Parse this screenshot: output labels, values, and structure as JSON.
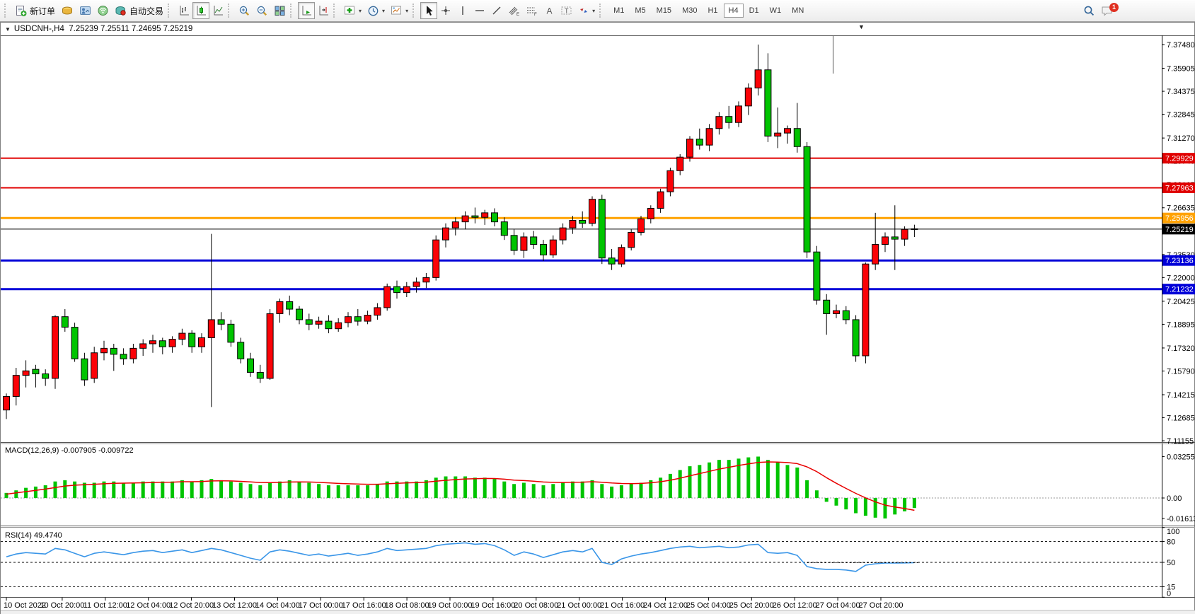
{
  "toolbar": {
    "new_order_label": "新订单",
    "auto_trading_label": "自动交易",
    "timeframes": [
      "M1",
      "M5",
      "M15",
      "M30",
      "H1",
      "H4",
      "D1",
      "W1",
      "MN"
    ],
    "active_timeframe": "H4",
    "notification_count": "1"
  },
  "chart": {
    "symbol": "USDCNH-,H4",
    "ohlc": "7.25239 7.25511 7.24695 7.25219"
  },
  "chart_data": {
    "type": "candlestick",
    "symbol": "USDCNH-",
    "timeframe": "H4",
    "bull_color": "#fb0207",
    "bear_color": "#00c400",
    "price_ticks": [
      "7.37480",
      "7.35905",
      "7.34375",
      "7.32845",
      "7.31270",
      "7.29740",
      "7.28165",
      "7.26635",
      "7.25105",
      "7.23530",
      "7.22000",
      "7.20425",
      "7.18895",
      "7.17320",
      "7.15790",
      "7.14215",
      "7.12685",
      "7.11155"
    ],
    "hlines": [
      {
        "label": "7.29929",
        "color": "#e00000",
        "width": 2
      },
      {
        "label": "7.27963",
        "color": "#e00000",
        "width": 2
      },
      {
        "label": "7.25956",
        "color": "#ffa200",
        "width": 3
      },
      {
        "label": "7.25219",
        "color": "#000000",
        "width": 1
      },
      {
        "label": "7.23136",
        "color": "#0000d8",
        "width": 3
      },
      {
        "label": "7.21232",
        "color": "#0000d8",
        "width": 3
      }
    ],
    "time_labels": [
      "10 Oct 2022",
      "10 Oct 20:00",
      "11 Oct 12:00",
      "12 Oct 04:00",
      "12 Oct 20:00",
      "13 Oct 12:00",
      "14 Oct 04:00",
      "17 Oct 00:00",
      "17 Oct 16:00",
      "18 Oct 08:00",
      "19 Oct 00:00",
      "19 Oct 16:00",
      "20 Oct 08:00",
      "21 Oct 00:00",
      "21 Oct 16:00",
      "24 Oct 12:00",
      "25 Oct 04:00",
      "25 Oct 20:00",
      "26 Oct 12:00",
      "27 Oct 04:00",
      "27 Oct 20:00"
    ],
    "candles": [
      [
        7.132,
        7.143,
        7.126,
        7.141
      ],
      [
        7.141,
        7.16,
        7.135,
        7.155
      ],
      [
        7.155,
        7.165,
        7.147,
        7.158
      ],
      [
        7.159,
        7.162,
        7.147,
        7.156
      ],
      [
        7.156,
        7.159,
        7.148,
        7.153
      ],
      [
        7.153,
        7.195,
        7.146,
        7.194
      ],
      [
        7.194,
        7.199,
        7.184,
        7.187
      ],
      [
        7.187,
        7.19,
        7.164,
        7.166
      ],
      [
        7.166,
        7.17,
        7.148,
        7.152
      ],
      [
        7.153,
        7.174,
        7.15,
        7.17
      ],
      [
        7.17,
        7.178,
        7.165,
        7.173
      ],
      [
        7.173,
        7.176,
        7.158,
        7.169
      ],
      [
        7.169,
        7.173,
        7.162,
        7.166
      ],
      [
        7.166,
        7.176,
        7.163,
        7.173
      ],
      [
        7.173,
        7.179,
        7.168,
        7.176
      ],
      [
        7.176,
        7.182,
        7.17,
        7.178
      ],
      [
        7.178,
        7.18,
        7.169,
        7.174
      ],
      [
        7.174,
        7.181,
        7.17,
        7.179
      ],
      [
        7.179,
        7.186,
        7.175,
        7.183
      ],
      [
        7.183,
        7.185,
        7.17,
        7.174
      ],
      [
        7.174,
        7.183,
        7.17,
        7.18
      ],
      [
        7.18,
        7.249,
        7.134,
        7.192
      ],
      [
        7.192,
        7.197,
        7.185,
        7.189
      ],
      [
        7.189,
        7.192,
        7.174,
        7.177
      ],
      [
        7.177,
        7.18,
        7.163,
        7.166
      ],
      [
        7.166,
        7.17,
        7.154,
        7.157
      ],
      [
        7.157,
        7.162,
        7.15,
        7.153
      ],
      [
        7.153,
        7.199,
        7.152,
        7.196
      ],
      [
        7.196,
        7.206,
        7.19,
        7.204
      ],
      [
        7.204,
        7.208,
        7.195,
        7.199
      ],
      [
        7.199,
        7.201,
        7.189,
        7.192
      ],
      [
        7.192,
        7.196,
        7.185,
        7.189
      ],
      [
        7.189,
        7.194,
        7.186,
        7.191
      ],
      [
        7.191,
        7.195,
        7.183,
        7.186
      ],
      [
        7.186,
        7.193,
        7.184,
        7.19
      ],
      [
        7.19,
        7.197,
        7.187,
        7.194
      ],
      [
        7.194,
        7.199,
        7.188,
        7.191
      ],
      [
        7.191,
        7.198,
        7.189,
        7.195
      ],
      [
        7.195,
        7.203,
        7.192,
        7.2
      ],
      [
        7.2,
        7.216,
        7.198,
        7.214
      ],
      [
        7.214,
        7.218,
        7.206,
        7.21
      ],
      [
        7.21,
        7.217,
        7.207,
        7.214
      ],
      [
        7.214,
        7.22,
        7.21,
        7.217
      ],
      [
        7.217,
        7.223,
        7.213,
        7.22
      ],
      [
        7.22,
        7.248,
        7.218,
        7.245
      ],
      [
        7.245,
        7.256,
        7.24,
        7.253
      ],
      [
        7.253,
        7.26,
        7.248,
        7.257
      ],
      [
        7.257,
        7.264,
        7.252,
        7.261
      ],
      [
        7.261,
        7.2665,
        7.256,
        7.26
      ],
      [
        7.26,
        7.265,
        7.255,
        7.263
      ],
      [
        7.263,
        7.266,
        7.254,
        7.257
      ],
      [
        7.257,
        7.26,
        7.245,
        7.248
      ],
      [
        7.248,
        7.252,
        7.235,
        7.238
      ],
      [
        7.238,
        7.25,
        7.233,
        7.247
      ],
      [
        7.247,
        7.251,
        7.239,
        7.242
      ],
      [
        7.242,
        7.245,
        7.231,
        7.235
      ],
      [
        7.235,
        7.248,
        7.233,
        7.245
      ],
      [
        7.245,
        7.256,
        7.242,
        7.253
      ],
      [
        7.253,
        7.261,
        7.249,
        7.258
      ],
      [
        7.258,
        7.264,
        7.253,
        7.256
      ],
      [
        7.256,
        7.274,
        7.254,
        7.272
      ],
      [
        7.272,
        7.275,
        7.229,
        7.233
      ],
      [
        7.233,
        7.239,
        7.225,
        7.229
      ],
      [
        7.229,
        7.242,
        7.227,
        7.24
      ],
      [
        7.24,
        7.252,
        7.238,
        7.25
      ],
      [
        7.25,
        7.261,
        7.248,
        7.259
      ],
      [
        7.259,
        7.268,
        7.256,
        7.266
      ],
      [
        7.266,
        7.279,
        7.263,
        7.277
      ],
      [
        7.277,
        7.293,
        7.274,
        7.291
      ],
      [
        7.291,
        7.302,
        7.288,
        7.3
      ],
      [
        7.3,
        7.314,
        7.297,
        7.312
      ],
      [
        7.312,
        7.319,
        7.305,
        7.308
      ],
      [
        7.308,
        7.322,
        7.304,
        7.319
      ],
      [
        7.319,
        7.33,
        7.315,
        7.327
      ],
      [
        7.327,
        7.334,
        7.319,
        7.323
      ],
      [
        7.323,
        7.337,
        7.32,
        7.334
      ],
      [
        7.334,
        7.349,
        7.328,
        7.346
      ],
      [
        7.346,
        7.3748,
        7.341,
        7.358
      ],
      [
        7.358,
        7.369,
        7.31,
        7.314
      ],
      [
        7.314,
        7.333,
        7.306,
        7.316
      ],
      [
        7.316,
        7.321,
        7.309,
        7.319
      ],
      [
        7.319,
        7.336,
        7.303,
        7.307
      ],
      [
        7.307,
        7.31,
        7.233,
        7.237
      ],
      [
        7.237,
        7.241,
        7.202,
        7.205
      ],
      [
        7.205,
        7.209,
        7.182,
        7.196
      ],
      [
        7.196,
        7.202,
        7.193,
        7.198
      ],
      [
        7.198,
        7.201,
        7.189,
        7.192
      ],
      [
        7.192,
        7.195,
        7.164,
        7.168
      ],
      [
        7.168,
        7.23,
        7.163,
        7.229
      ],
      [
        7.229,
        7.263,
        7.225,
        7.242
      ],
      [
        7.242,
        7.25,
        7.237,
        7.247
      ],
      [
        7.247,
        7.268,
        7.225,
        7.2455
      ],
      [
        7.2455,
        7.254,
        7.241,
        7.252
      ],
      [
        7.25239,
        7.25511,
        7.24695,
        7.25219
      ]
    ],
    "macd": {
      "label": "MACD(12,26,9) -0.007905 -0.009722",
      "bar_color": "#00c400",
      "signal_color": "#e80000",
      "ticks": [
        "0.032551",
        "0.00",
        "-0.016137"
      ],
      "tick_values": [
        0.032551,
        0,
        -0.016137
      ],
      "values": [
        0.004,
        0.006,
        0.008,
        0.009,
        0.01,
        0.013,
        0.014,
        0.013,
        0.012,
        0.012,
        0.013,
        0.013,
        0.012,
        0.012,
        0.013,
        0.013,
        0.013,
        0.013,
        0.014,
        0.013,
        0.014,
        0.015,
        0.014,
        0.013,
        0.012,
        0.011,
        0.01,
        0.012,
        0.013,
        0.014,
        0.013,
        0.012,
        0.011,
        0.01,
        0.01,
        0.01,
        0.01,
        0.01,
        0.011,
        0.013,
        0.013,
        0.013,
        0.013,
        0.014,
        0.016,
        0.017,
        0.017,
        0.017,
        0.016,
        0.016,
        0.015,
        0.013,
        0.011,
        0.012,
        0.011,
        0.01,
        0.011,
        0.012,
        0.013,
        0.013,
        0.014,
        0.011,
        0.009,
        0.01,
        0.011,
        0.012,
        0.014,
        0.016,
        0.019,
        0.022,
        0.025,
        0.026,
        0.028,
        0.03,
        0.03,
        0.031,
        0.032,
        0.0326,
        0.03,
        0.028,
        0.026,
        0.024,
        0.014,
        0.006,
        -0.003,
        -0.006,
        -0.009,
        -0.012,
        -0.014,
        -0.0155,
        -0.0161,
        -0.013,
        -0.0105,
        -0.0079
      ],
      "signal": [
        0.003,
        0.004,
        0.005,
        0.006,
        0.007,
        0.0082,
        0.0094,
        0.0101,
        0.0105,
        0.0108,
        0.0112,
        0.0116,
        0.0117,
        0.0118,
        0.012,
        0.0122,
        0.0124,
        0.0125,
        0.0128,
        0.0128,
        0.013,
        0.0134,
        0.0135,
        0.0134,
        0.0131,
        0.0127,
        0.0122,
        0.0121,
        0.0123,
        0.0126,
        0.0127,
        0.0126,
        0.0123,
        0.0119,
        0.0115,
        0.0112,
        0.011,
        0.0108,
        0.0108,
        0.0112,
        0.0116,
        0.0119,
        0.0121,
        0.0125,
        0.0132,
        0.0139,
        0.0145,
        0.015,
        0.0152,
        0.0154,
        0.0153,
        0.0148,
        0.0141,
        0.0137,
        0.0132,
        0.0126,
        0.0123,
        0.0122,
        0.0124,
        0.0125,
        0.0128,
        0.0124,
        0.0118,
        0.0114,
        0.0113,
        0.0115,
        0.012,
        0.0128,
        0.014,
        0.0156,
        0.0175,
        0.0192,
        0.021,
        0.0228,
        0.0242,
        0.0256,
        0.0269,
        0.028,
        0.0284,
        0.0283,
        0.0279,
        0.0271,
        0.0245,
        0.0208,
        0.016,
        0.0116,
        0.0075,
        0.0036,
        0.0001,
        -0.003,
        -0.0056,
        -0.0071,
        -0.0083,
        -0.0097
      ]
    },
    "rsi": {
      "label": "RSI(14) 49.4740",
      "line_color": "#3a96e8",
      "levels": [
        80,
        50,
        15
      ],
      "axis_labels": [
        "100",
        "80",
        "50",
        "15",
        "0"
      ],
      "values": [
        58,
        62,
        64,
        63,
        62,
        70,
        68,
        63,
        58,
        63,
        65,
        63,
        61,
        64,
        66,
        67,
        64,
        66,
        68,
        64,
        67,
        70,
        68,
        64,
        60,
        56,
        53,
        65,
        68,
        66,
        63,
        60,
        62,
        59,
        61,
        63,
        60,
        62,
        65,
        70,
        67,
        68,
        69,
        70,
        74,
        76,
        77,
        78,
        76,
        77,
        74,
        68,
        60,
        65,
        62,
        57,
        61,
        65,
        67,
        65,
        70,
        50,
        47,
        55,
        59,
        62,
        64,
        67,
        70,
        72,
        73,
        71,
        72,
        73,
        71,
        72,
        75,
        76,
        64,
        63,
        64,
        60,
        44,
        41,
        40,
        40,
        39,
        37,
        46,
        48,
        49,
        49,
        49.2,
        49.474
      ]
    }
  }
}
